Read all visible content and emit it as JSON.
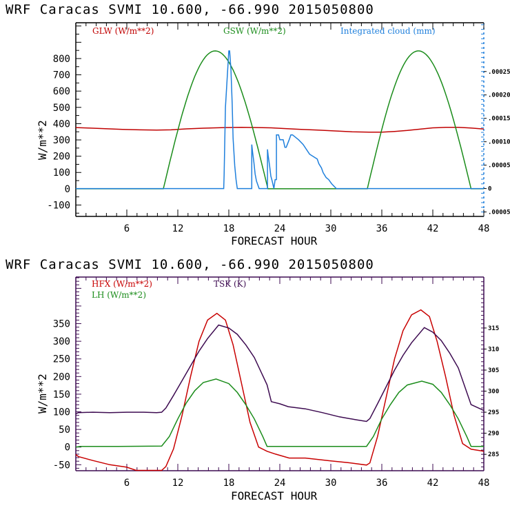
{
  "chart_data": [
    {
      "type": "line",
      "title": "WRF  Caracas SVMI  10.600, -66.990  2015050800",
      "xlabel": "FORECAST HOUR",
      "ylabel": "W/m**2",
      "xlim": [
        0,
        48
      ],
      "ylim": [
        -170,
        1020
      ],
      "y2lim": [
        -5.95e-05,
        0.0003542
      ],
      "xticks": [
        6,
        12,
        18,
        24,
        30,
        36,
        42,
        48
      ],
      "xtick_labels": [
        "6",
        "12",
        "18",
        "24",
        "30",
        "36",
        "42",
        "48"
      ],
      "yticks": [
        800,
        700,
        600,
        500,
        400,
        300,
        200,
        100,
        0,
        -100
      ],
      "ytick_labels": [
        "800",
        "700",
        "600",
        "500",
        "400",
        "300",
        "200",
        "100",
        "0",
        "-100"
      ],
      "y2ticks": [
        0.00025,
        0.0002,
        0.00015,
        0.0001,
        5e-05,
        0,
        -5e-05
      ],
      "y2tick_labels": [
        ".00025",
        ".00020",
        ".00015",
        ".00010",
        ".00005",
        "0",
        ".00005"
      ],
      "grid": false,
      "legend_position": "top",
      "series": [
        {
          "name": "GLW (W/m**2)",
          "color": "#c00000",
          "axis": "left",
          "x": [
            0,
            1.5,
            3.5,
            5.5,
            7.5,
            9.5,
            11.2,
            13,
            15,
            17.5,
            19.5,
            21.5,
            23,
            24.5,
            26.5,
            28.5,
            30.5,
            32.5,
            34.5,
            36,
            37.5,
            39,
            40.5,
            42,
            43.5,
            45,
            46.5,
            48
          ],
          "values": [
            376,
            373,
            369,
            365,
            362,
            360,
            362,
            368,
            372,
            376,
            377,
            376,
            374,
            370,
            365,
            360,
            355,
            350,
            348,
            348,
            352,
            358,
            366,
            374,
            377,
            377,
            373,
            367
          ]
        },
        {
          "name": "GSW (W/m**2)",
          "color": "#1a8c1a",
          "axis": "left",
          "daylight": [
            {
              "start": 10.3,
              "peak": 16.4,
              "end": 22.6,
              "max": 847
            },
            {
              "start": 34.3,
              "peak": 40.3,
              "end": 46.5,
              "max": 847
            }
          ]
        },
        {
          "name": "Integrated cloud (mm)",
          "color": "#1e7fdc",
          "axis": "right",
          "x": [
            0,
            17.4,
            17.45,
            17.6,
            17.9,
            18.0,
            18.1,
            18.25,
            18.4,
            18.5,
            18.7,
            18.85,
            19.0,
            19.25,
            20.7,
            20.7,
            20.8,
            20.95,
            21.1,
            21.25,
            21.57,
            22.55,
            22.55,
            22.63,
            22.8,
            22.95,
            23.1,
            23.3,
            23.45,
            23.6,
            23.6,
            23.85,
            24.0,
            24.4,
            24.6,
            24.75,
            25.1,
            25.3,
            25.5,
            26.2,
            26.75,
            27.5,
            28.4,
            28.6,
            28.9,
            29.1,
            29.45,
            29.75,
            30.1,
            30.65,
            30.9,
            48
          ],
          "values": [
            0,
            0,
            2.94e-05,
            0.0001735,
            0.0002647,
            0.000294,
            0.000294,
            0.0002544,
            0.0001809,
            0.0001074,
            4.85e-05,
            1.91e-05,
            0,
            0,
            0,
            9.41e-05,
            7.79e-05,
            5.59e-05,
            3.09e-05,
            1.62e-05,
            0,
            0,
            8.38e-05,
            7.06e-05,
            4.85e-05,
            2.65e-05,
            1.62e-05,
            0,
            1.91e-05,
            1.91e-05,
            0.0001147,
            0.0001147,
            0.0001044,
            0.0001044,
            8.82e-05,
            8.82e-05,
            0.0001044,
            0.0001147,
            0.0001147,
            0.0001044,
            9.4e-05,
            7.35e-05,
            6.32e-05,
            5.29e-05,
            4.41e-05,
            3.38e-05,
            2.35e-05,
            1.91e-05,
            1.03e-05,
            0,
            0,
            0
          ]
        }
      ]
    },
    {
      "type": "line",
      "title": "WRF  Caracas SVMI  10.600, -66.990  2015050800",
      "xlabel": "FORECAST HOUR",
      "ylabel": "W/m**2",
      "xlim": [
        0,
        48
      ],
      "ylim": [
        -67,
        482
      ],
      "y2lim": [
        281.1,
        327.1
      ],
      "xticks": [
        6,
        12,
        18,
        24,
        30,
        36,
        42,
        48
      ],
      "xtick_labels": [
        "6",
        "12",
        "18",
        "24",
        "30",
        "36",
        "42",
        "48"
      ],
      "yticks": [
        350,
        300,
        250,
        200,
        150,
        100,
        50,
        0,
        -50
      ],
      "ytick_labels": [
        "350",
        "300",
        "250",
        "200",
        "150",
        "100",
        "50",
        "0",
        "-50"
      ],
      "y2ticks": [
        315,
        310,
        305,
        300,
        295,
        290,
        285
      ],
      "y2tick_labels": [
        "315",
        "310",
        "305",
        "300",
        "295",
        "290",
        "285"
      ],
      "grid": false,
      "legend_position": "top-left",
      "series": [
        {
          "name": "HFX (W/m**2)",
          "color": "#c80000",
          "axis": "left",
          "x": [
            0,
            0.3,
            2,
            4,
            6,
            7.1,
            8.5,
            10.1,
            10.6,
            11.5,
            12.5,
            13.5,
            14.5,
            15.5,
            16.6,
            17.6,
            18.5,
            19.5,
            20.5,
            21.5,
            22.5,
            23.5,
            25.1,
            27,
            30.0,
            32,
            34.2,
            34.6,
            35.5,
            36.5,
            37.5,
            38.5,
            39.5,
            40.6,
            41.6,
            42.5,
            43.5,
            44.5,
            45.5,
            46.5,
            48
          ],
          "values": [
            -21,
            -27,
            -38,
            -50,
            -57,
            -66,
            -66,
            -66,
            -55,
            -5,
            90,
            200,
            300,
            360,
            379,
            360,
            290,
            180,
            70,
            0,
            -12,
            -20,
            -31,
            -31,
            -39,
            -44,
            -51,
            -45,
            30,
            140,
            250,
            330,
            375,
            389,
            370,
            300,
            200,
            90,
            10,
            -6,
            -12
          ]
        },
        {
          "name": "LH (W/m**2)",
          "color": "#1a8c1a",
          "axis": "left",
          "x": [
            0,
            0.5,
            5,
            10.1,
            11,
            12,
            13,
            14,
            15,
            16.5,
            18,
            19,
            20,
            21,
            22,
            22.5,
            30,
            34.2,
            35,
            36,
            37,
            38,
            39,
            40.7,
            42,
            43,
            44,
            45,
            46,
            46.5,
            48
          ],
          "values": [
            0,
            2,
            2,
            3,
            30,
            80,
            125,
            160,
            183,
            193,
            180,
            155,
            120,
            80,
            30,
            2,
            2,
            2,
            30,
            80,
            120,
            155,
            176,
            187,
            178,
            155,
            120,
            80,
            30,
            2,
            2
          ]
        },
        {
          "name": "TSK (K)",
          "color": "#3c0a50",
          "axis": "right",
          "x": [
            0,
            0.3,
            2,
            4,
            6,
            8,
            9.5,
            10.1,
            10.6,
            11.5,
            12.5,
            13.5,
            14.5,
            15.5,
            16.8,
            18,
            19,
            20,
            21,
            22.5,
            23,
            24,
            25,
            27,
            29,
            31,
            33,
            34.2,
            34.6,
            35.5,
            36.5,
            37.5,
            38.5,
            39.5,
            41.0,
            42,
            43,
            44,
            45,
            46.5,
            48
          ],
          "values": [
            294.6,
            294.9,
            295.0,
            294.9,
            295.0,
            295.0,
            294.9,
            295.0,
            296.0,
            299.0,
            302.5,
            306.0,
            309.5,
            312.5,
            315.7,
            315.0,
            313.5,
            311.0,
            308.0,
            301.5,
            297.5,
            297.0,
            296.3,
            295.8,
            294.9,
            293.9,
            293.2,
            292.8,
            293.5,
            297.0,
            301.0,
            305.0,
            308.5,
            311.5,
            315.1,
            314.0,
            312.0,
            309.0,
            305.5,
            296.8,
            295.4
          ]
        }
      ]
    }
  ]
}
